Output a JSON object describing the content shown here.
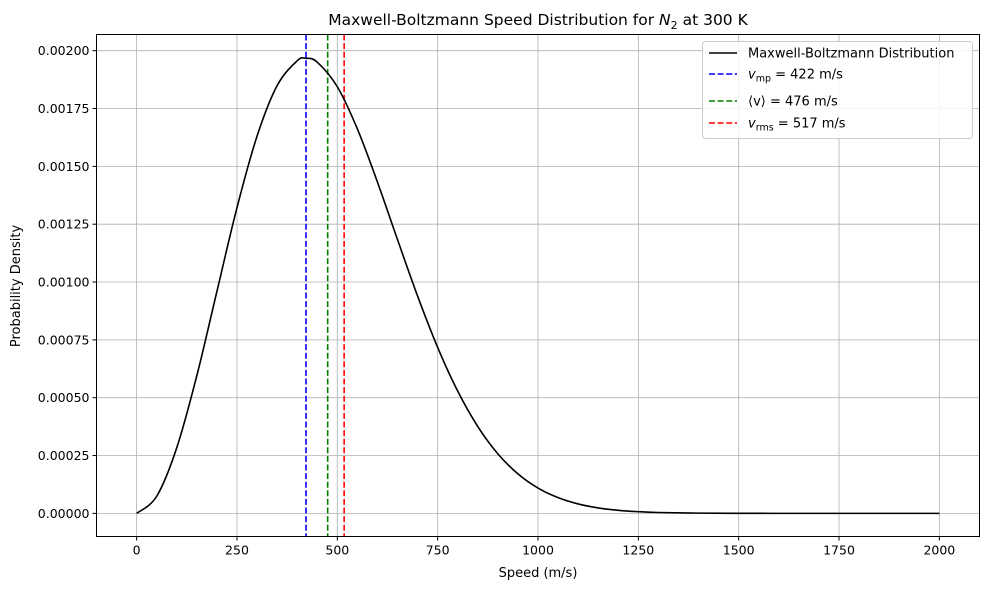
{
  "chart_data": {
    "type": "line",
    "title": {
      "prefix": "Maxwell-Boltzmann Speed Distribution for ",
      "symbol": "N",
      "sub": "2",
      "suffix": " at 300 K"
    },
    "xlabel": "Speed (m/s)",
    "ylabel": "Probability Density",
    "xlim": [
      -100,
      2100
    ],
    "ylim": [
      -0.0001,
      0.00207
    ],
    "xticks": [
      0,
      250,
      500,
      750,
      1000,
      1250,
      1500,
      1750,
      2000
    ],
    "xtick_labels": [
      "0",
      "250",
      "500",
      "750",
      "1000",
      "1250",
      "1500",
      "1750",
      "2000"
    ],
    "yticks": [
      0,
      0.00025,
      0.0005,
      0.00075,
      0.001,
      0.00125,
      0.0015,
      0.00175,
      0.002
    ],
    "ytick_labels": [
      "0.00000",
      "0.00025",
      "0.00050",
      "0.00075",
      "0.00100",
      "0.00125",
      "0.00150",
      "0.00175",
      "0.00200"
    ],
    "grid": true,
    "legend_position": "top-right",
    "series": [
      {
        "name": "Maxwell-Boltzmann Distribution",
        "color": "#000000",
        "style": "solid",
        "x": [
          0,
          50,
          100,
          150,
          200,
          250,
          300,
          350,
          400,
          422,
          450,
          500,
          550,
          600,
          650,
          700,
          750,
          800,
          850,
          900,
          950,
          1000,
          1050,
          1100,
          1150,
          1200,
          1250,
          1300,
          1400,
          1500,
          1600,
          1700,
          1800,
          1900,
          2000
        ],
        "y": [
          0,
          7.4e-05,
          0.0002839,
          0.0005955,
          0.0009595,
          0.0013213,
          0.0016305,
          0.001849,
          0.0019564,
          0.001967,
          0.0019504,
          0.0018442,
          0.0016617,
          0.001432,
          0.0011832,
          0.0009394,
          0.0007175,
          0.0005283,
          0.0003753,
          0.0002573,
          0.0001706,
          0.0001093,
          6.79e-05,
          4.07e-05,
          2.36e-05,
          1.33e-05,
          7.3e-06,
          3.8e-06,
          1e-06,
          2e-07,
          0,
          0,
          0,
          0,
          0
        ]
      }
    ],
    "vlines": [
      {
        "x": 422,
        "color": "#0000ff",
        "style": "dashed",
        "symbol": "v",
        "sub": "mp",
        "text": " = 422 m/s"
      },
      {
        "x": 476,
        "color": "#008000",
        "style": "dashed",
        "symbol": "⟨v⟩",
        "sub": "",
        "text": " = 476 m/s"
      },
      {
        "x": 517,
        "color": "#ff0000",
        "style": "dashed",
        "symbol": "v",
        "sub": "rms",
        "text": " = 517 m/s"
      }
    ]
  }
}
